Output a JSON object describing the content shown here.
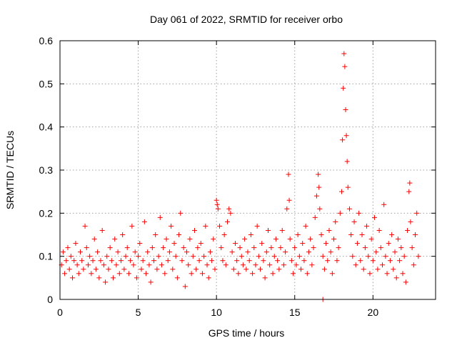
{
  "chart_data": {
    "type": "scatter",
    "title": "Day 061 of 2022, SRMTID for receiver orbo",
    "xlabel": "GPS time / hours",
    "ylabel": "SRMTID / TECUs",
    "xlim": [
      0,
      24
    ],
    "ylim": [
      0,
      0.6
    ],
    "xticks": [
      0,
      5,
      10,
      15,
      20
    ],
    "xtick_labels": [
      "0",
      "5",
      "10",
      "15",
      "20"
    ],
    "yticks": [
      0,
      0.1,
      0.2,
      0.3,
      0.4,
      0.5,
      0.6
    ],
    "ytick_labels": [
      "0",
      "0.1",
      "0.2",
      "0.3",
      "0.4",
      "0.5",
      "0.6"
    ],
    "grid": true,
    "marker": "plus",
    "color": "#ff0000",
    "series": [
      {
        "name": "SRMTID",
        "points": [
          [
            0.1,
            0.08
          ],
          [
            0.2,
            0.11
          ],
          [
            0.3,
            0.06
          ],
          [
            0.4,
            0.09
          ],
          [
            0.5,
            0.12
          ],
          [
            0.6,
            0.07
          ],
          [
            0.7,
            0.1
          ],
          [
            0.8,
            0.05
          ],
          [
            0.9,
            0.09
          ],
          [
            1.0,
            0.13
          ],
          [
            1.1,
            0.08
          ],
          [
            1.2,
            0.06
          ],
          [
            1.3,
            0.11
          ],
          [
            1.4,
            0.09
          ],
          [
            1.5,
            0.07
          ],
          [
            1.6,
            0.17
          ],
          [
            1.7,
            0.12
          ],
          [
            1.8,
            0.08
          ],
          [
            1.9,
            0.1
          ],
          [
            2.0,
            0.06
          ],
          [
            2.1,
            0.09
          ],
          [
            2.2,
            0.14
          ],
          [
            2.3,
            0.07
          ],
          [
            2.4,
            0.11
          ],
          [
            2.5,
            0.05
          ],
          [
            2.6,
            0.09
          ],
          [
            2.7,
            0.16
          ],
          [
            2.8,
            0.08
          ],
          [
            2.9,
            0.04
          ],
          [
            3.0,
            0.1
          ],
          [
            3.1,
            0.07
          ],
          [
            3.2,
            0.12
          ],
          [
            3.3,
            0.09
          ],
          [
            3.4,
            0.05
          ],
          [
            3.5,
            0.14
          ],
          [
            3.6,
            0.08
          ],
          [
            3.7,
            0.11
          ],
          [
            3.8,
            0.06
          ],
          [
            3.9,
            0.09
          ],
          [
            4.0,
            0.15
          ],
          [
            4.1,
            0.07
          ],
          [
            4.2,
            0.1
          ],
          [
            4.3,
            0.12
          ],
          [
            4.4,
            0.06
          ],
          [
            4.5,
            0.09
          ],
          [
            4.6,
            0.17
          ],
          [
            4.7,
            0.08
          ],
          [
            4.8,
            0.11
          ],
          [
            4.9,
            0.05
          ],
          [
            5.0,
            0.1
          ],
          [
            5.1,
            0.13
          ],
          [
            5.2,
            0.07
          ],
          [
            5.3,
            0.09
          ],
          [
            5.4,
            0.18
          ],
          [
            5.5,
            0.06
          ],
          [
            5.6,
            0.11
          ],
          [
            5.7,
            0.08
          ],
          [
            5.8,
            0.04
          ],
          [
            5.9,
            0.12
          ],
          [
            6.0,
            0.09
          ],
          [
            6.1,
            0.15
          ],
          [
            6.2,
            0.07
          ],
          [
            6.3,
            0.1
          ],
          [
            6.4,
            0.19
          ],
          [
            6.5,
            0.08
          ],
          [
            6.6,
            0.12
          ],
          [
            6.7,
            0.06
          ],
          [
            6.8,
            0.14
          ],
          [
            6.9,
            0.09
          ],
          [
            7.0,
            0.11
          ],
          [
            7.1,
            0.17
          ],
          [
            7.2,
            0.07
          ],
          [
            7.3,
            0.13
          ],
          [
            7.4,
            0.1
          ],
          [
            7.5,
            0.05
          ],
          [
            7.6,
            0.15
          ],
          [
            7.7,
            0.2
          ],
          [
            7.8,
            0.09
          ],
          [
            7.9,
            0.12
          ],
          [
            8.0,
            0.03
          ],
          [
            8.1,
            0.11
          ],
          [
            8.2,
            0.08
          ],
          [
            8.3,
            0.14
          ],
          [
            8.4,
            0.06
          ],
          [
            8.5,
            0.1
          ],
          [
            8.6,
            0.16
          ],
          [
            8.7,
            0.07
          ],
          [
            8.8,
            0.12
          ],
          [
            8.9,
            0.09
          ],
          [
            9.0,
            0.13
          ],
          [
            9.1,
            0.06
          ],
          [
            9.2,
            0.1
          ],
          [
            9.3,
            0.17
          ],
          [
            9.4,
            0.08
          ],
          [
            9.5,
            0.05
          ],
          [
            9.6,
            0.11
          ],
          [
            9.7,
            0.09
          ],
          [
            9.8,
            0.14
          ],
          [
            9.9,
            0.07
          ],
          [
            10.0,
            0.23
          ],
          [
            10.05,
            0.22
          ],
          [
            10.1,
            0.21
          ],
          [
            10.2,
            0.17
          ],
          [
            10.3,
            0.12
          ],
          [
            10.4,
            0.09
          ],
          [
            10.5,
            0.15
          ],
          [
            10.6,
            0.08
          ],
          [
            10.7,
            0.18
          ],
          [
            10.8,
            0.21
          ],
          [
            10.9,
            0.2
          ],
          [
            11.0,
            0.11
          ],
          [
            11.1,
            0.07
          ],
          [
            11.2,
            0.13
          ],
          [
            11.3,
            0.09
          ],
          [
            11.4,
            0.06
          ],
          [
            11.5,
            0.12
          ],
          [
            11.6,
            0.1
          ],
          [
            11.7,
            0.08
          ],
          [
            11.8,
            0.14
          ],
          [
            11.9,
            0.07
          ],
          [
            12.0,
            0.11
          ],
          [
            12.1,
            0.09
          ],
          [
            12.2,
            0.15
          ],
          [
            12.3,
            0.06
          ],
          [
            12.4,
            0.12
          ],
          [
            12.5,
            0.08
          ],
          [
            12.6,
            0.17
          ],
          [
            12.7,
            0.1
          ],
          [
            12.8,
            0.07
          ],
          [
            12.9,
            0.13
          ],
          [
            13.0,
            0.09
          ],
          [
            13.1,
            0.05
          ],
          [
            13.2,
            0.11
          ],
          [
            13.3,
            0.16
          ],
          [
            13.4,
            0.08
          ],
          [
            13.5,
            0.12
          ],
          [
            13.6,
            0.06
          ],
          [
            13.7,
            0.1
          ],
          [
            13.8,
            0.14
          ],
          [
            13.9,
            0.09
          ],
          [
            14.0,
            0.07
          ],
          [
            14.1,
            0.12
          ],
          [
            14.2,
            0.16
          ],
          [
            14.3,
            0.08
          ],
          [
            14.4,
            0.11
          ],
          [
            14.5,
            0.21
          ],
          [
            14.6,
            0.29
          ],
          [
            14.65,
            0.23
          ],
          [
            14.7,
            0.14
          ],
          [
            14.8,
            0.09
          ],
          [
            14.9,
            0.06
          ],
          [
            15.0,
            0.12
          ],
          [
            15.1,
            0.08
          ],
          [
            15.2,
            0.15
          ],
          [
            15.3,
            0.1
          ],
          [
            15.4,
            0.07
          ],
          [
            15.5,
            0.13
          ],
          [
            15.6,
            0.09
          ],
          [
            15.7,
            0.17
          ],
          [
            15.8,
            0.06
          ],
          [
            15.9,
            0.11
          ],
          [
            16.0,
            0.14
          ],
          [
            16.1,
            0.08
          ],
          [
            16.2,
            0.12
          ],
          [
            16.3,
            0.19
          ],
          [
            16.4,
            0.24
          ],
          [
            16.5,
            0.29
          ],
          [
            16.55,
            0.26
          ],
          [
            16.6,
            0.21
          ],
          [
            16.7,
            0.15
          ],
          [
            16.8,
            0.1
          ],
          [
            16.9,
            0.07
          ],
          [
            17.0,
            0.13
          ],
          [
            17.1,
            0.09
          ],
          [
            17.2,
            0.16
          ],
          [
            17.3,
            0.11
          ],
          [
            17.4,
            0.06
          ],
          [
            17.5,
            0.14
          ],
          [
            17.6,
            0.18
          ],
          [
            17.7,
            0.09
          ],
          [
            17.8,
            0.12
          ],
          [
            17.9,
            0.2
          ],
          [
            18.0,
            0.25
          ],
          [
            18.05,
            0.37
          ],
          [
            18.1,
            0.49
          ],
          [
            18.15,
            0.57
          ],
          [
            18.2,
            0.54
          ],
          [
            18.25,
            0.44
          ],
          [
            18.3,
            0.38
          ],
          [
            18.35,
            0.32
          ],
          [
            18.4,
            0.26
          ],
          [
            18.5,
            0.21
          ],
          [
            18.6,
            0.15
          ],
          [
            18.7,
            0.1
          ],
          [
            18.8,
            0.18
          ],
          [
            18.9,
            0.08
          ],
          [
            19.0,
            0.13
          ],
          [
            19.1,
            0.2
          ],
          [
            19.2,
            0.09
          ],
          [
            19.3,
            0.15
          ],
          [
            19.4,
            0.07
          ],
          [
            19.5,
            0.12
          ],
          [
            19.6,
            0.17
          ],
          [
            19.7,
            0.1
          ],
          [
            19.8,
            0.06
          ],
          [
            19.9,
            0.14
          ],
          [
            20.0,
            0.09
          ],
          [
            20.1,
            0.19
          ],
          [
            20.2,
            0.11
          ],
          [
            20.3,
            0.07
          ],
          [
            20.4,
            0.16
          ],
          [
            20.5,
            0.12
          ],
          [
            20.6,
            0.08
          ],
          [
            20.7,
            0.22
          ],
          [
            20.8,
            0.1
          ],
          [
            20.9,
            0.06
          ],
          [
            21.0,
            0.13
          ],
          [
            21.1,
            0.09
          ],
          [
            21.2,
            0.15
          ],
          [
            21.3,
            0.07
          ],
          [
            21.4,
            0.11
          ],
          [
            21.5,
            0.05
          ],
          [
            21.6,
            0.14
          ],
          [
            21.7,
            0.09
          ],
          [
            21.8,
            0.12
          ],
          [
            21.9,
            0.06
          ],
          [
            22.0,
            0.1
          ],
          [
            22.1,
            0.04
          ],
          [
            22.2,
            0.16
          ],
          [
            22.3,
            0.25
          ],
          [
            22.35,
            0.27
          ],
          [
            22.4,
            0.18
          ],
          [
            22.5,
            0.12
          ],
          [
            22.6,
            0.08
          ],
          [
            22.7,
            0.15
          ],
          [
            22.8,
            0.2
          ],
          [
            22.9,
            0.1
          ],
          [
            16.8,
            0.0
          ]
        ]
      }
    ]
  }
}
